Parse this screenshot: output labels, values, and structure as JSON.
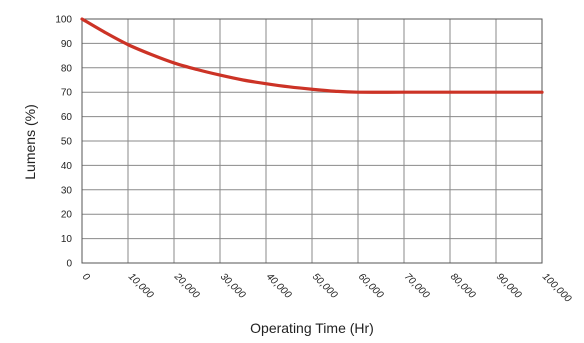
{
  "chart_data": {
    "type": "line",
    "xlabel": "Operating Time (Hr)",
    "ylabel": "Lumens (%)",
    "xlim": [
      0,
      100000
    ],
    "ylim": [
      0,
      100
    ],
    "x_ticks": [
      0,
      10000,
      20000,
      30000,
      40000,
      50000,
      60000,
      70000,
      80000,
      90000,
      100000
    ],
    "x_tick_labels": [
      "0",
      "10,000",
      "20,000",
      "30,000",
      "40,000",
      "50,000",
      "60,000",
      "70,000",
      "80,000",
      "90,000",
      "100,000"
    ],
    "y_ticks": [
      0,
      10,
      20,
      30,
      40,
      50,
      60,
      70,
      80,
      90,
      100
    ],
    "y_tick_labels": [
      "0",
      "10",
      "20",
      "30",
      "40",
      "50",
      "60",
      "70",
      "80",
      "90",
      "100"
    ],
    "grid": true,
    "series": [
      {
        "color": "#cc3326",
        "x": [
          0,
          5000,
          10000,
          15000,
          20000,
          25000,
          30000,
          35000,
          40000,
          45000,
          50000,
          55000,
          60000,
          70000,
          80000,
          90000,
          100000
        ],
        "y": [
          100,
          94.5,
          89.5,
          85.5,
          82,
          79.3,
          77,
          75,
          73.5,
          72.2,
          71.2,
          70.4,
          70,
          70,
          70,
          70,
          70
        ]
      }
    ]
  }
}
